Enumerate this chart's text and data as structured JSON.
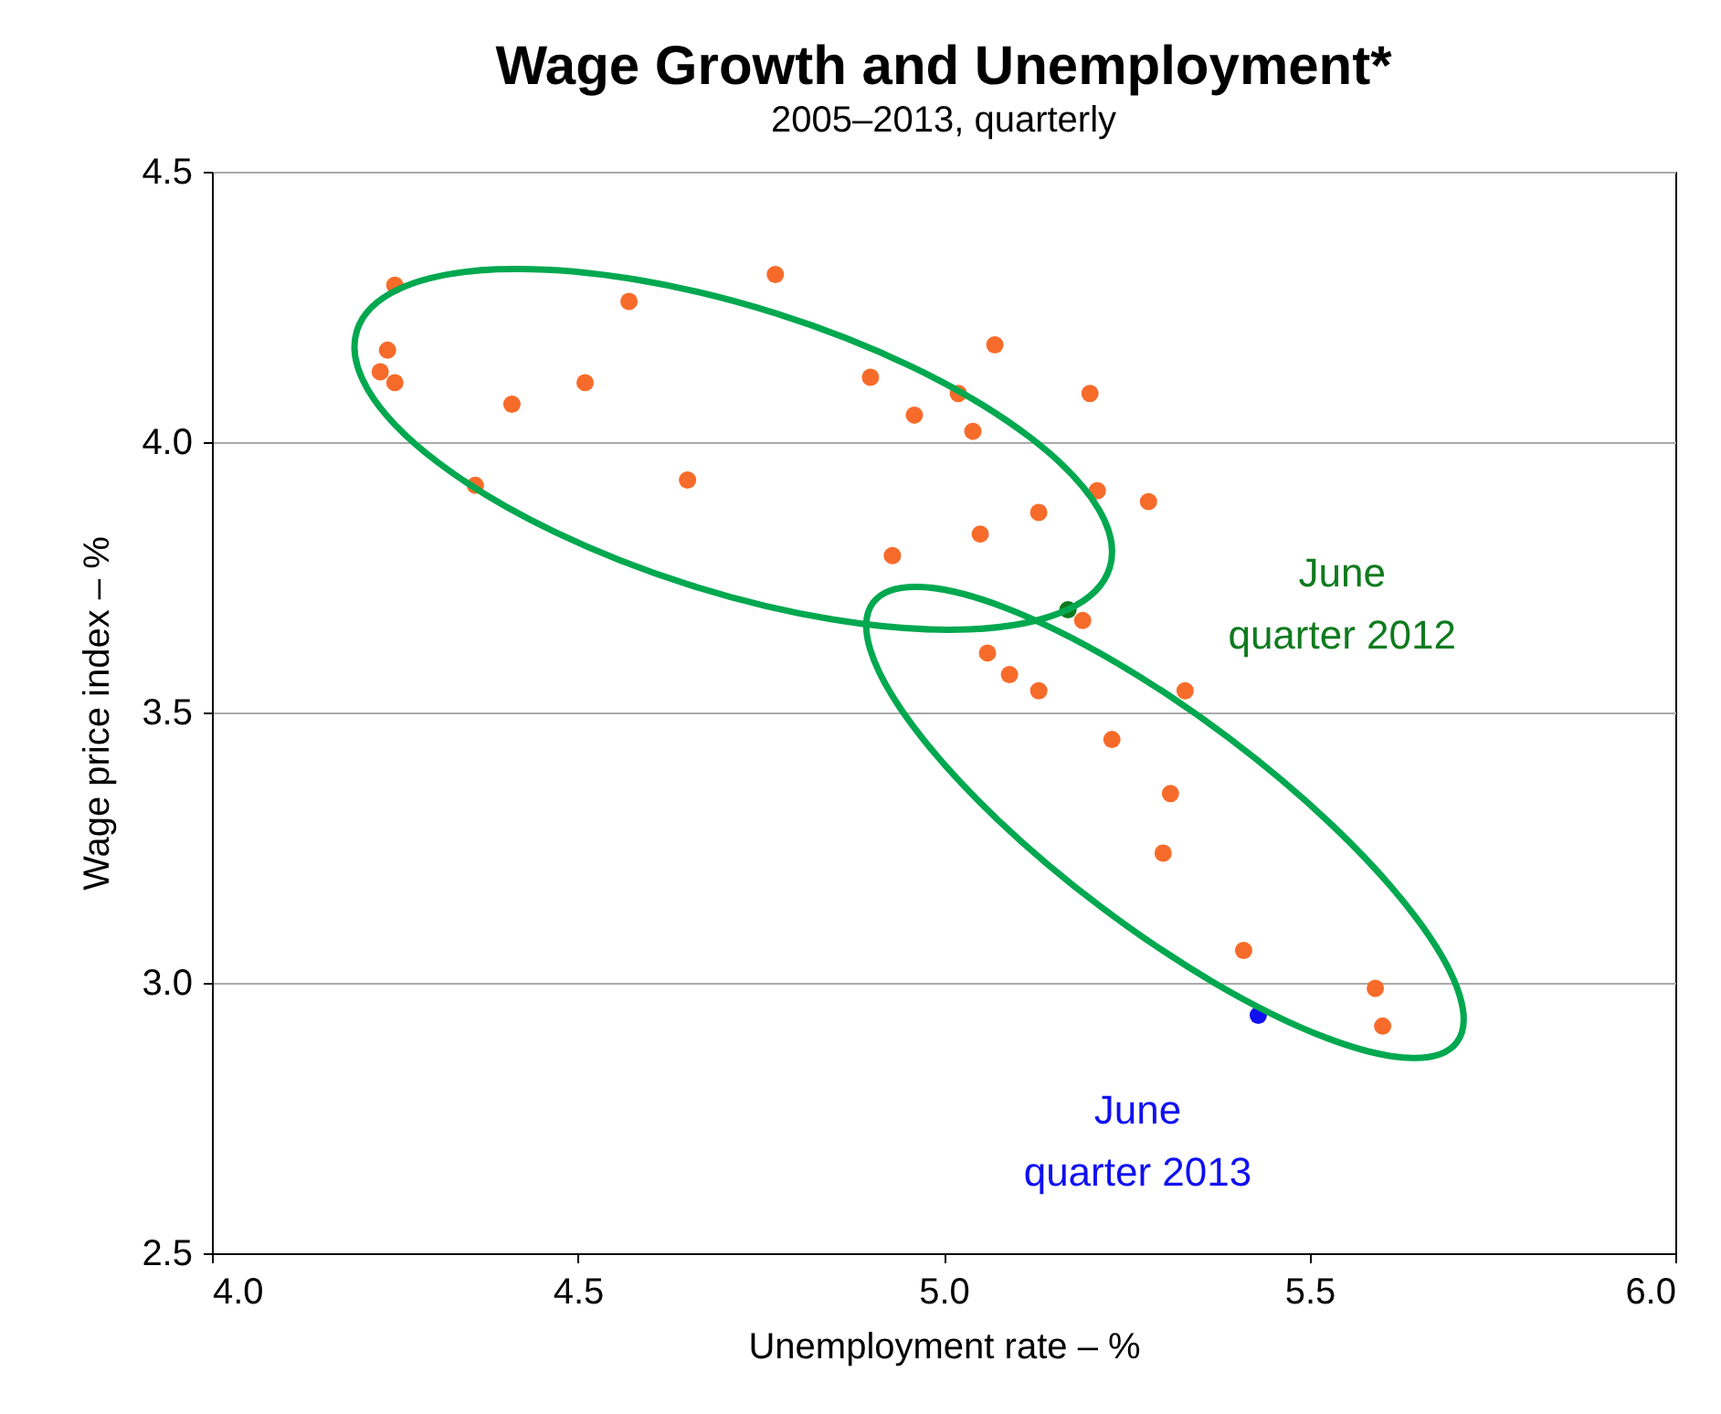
{
  "chart_data": {
    "type": "scatter",
    "title": "Wage Growth and Unemployment*",
    "subtitle": "2005–2013, quarterly",
    "xlabel": "Unemployment rate – %",
    "ylabel": "Wage price index – %",
    "series": [
      {
        "color": "#f76b2a",
        "x": [
          4.25,
          4.24,
          4.23,
          4.25,
          4.41,
          4.36,
          4.51,
          4.57,
          4.65,
          4.77,
          4.9,
          4.96,
          5.02,
          5.04,
          5.07,
          4.93,
          5.05,
          5.13,
          5.2,
          5.21,
          5.28,
          5.19,
          5.06,
          5.09,
          5.13,
          5.33,
          5.23,
          5.31,
          5.3,
          5.41,
          5.59,
          5.6
        ],
        "values": [
          4.29,
          4.17,
          4.13,
          4.11,
          4.07,
          3.92,
          4.11,
          4.26,
          3.93,
          4.31,
          4.12,
          4.05,
          4.09,
          4.02,
          4.18,
          3.79,
          3.83,
          3.87,
          4.09,
          3.91,
          3.89,
          3.67,
          3.61,
          3.57,
          3.54,
          3.54,
          3.45,
          3.35,
          3.24,
          3.06,
          2.99,
          2.92
        ]
      },
      {
        "color": "#0f7a1e",
        "x": [
          5.17
        ],
        "values": [
          3.69
        ]
      },
      {
        "color": "#1010f0",
        "x": [
          5.43
        ],
        "values": [
          2.94
        ]
      }
    ],
    "annotations": [
      "June\nquarter 2012",
      "June\nquarter 2013"
    ],
    "xlim": [
      4.0,
      6.0
    ],
    "xticks": [
      {
        "value": 4,
        "label": "4.0"
      },
      {
        "value": 4.5,
        "label": "4.5"
      },
      {
        "value": 5,
        "label": "5.0"
      },
      {
        "value": 5.5,
        "label": "5.5"
      },
      {
        "value": 6,
        "label": "6.0"
      }
    ],
    "ylim": [
      2.5,
      4.5
    ],
    "yticks": [
      {
        "value": 2.5,
        "label": "2.5"
      },
      {
        "value": 3,
        "label": "3.0"
      },
      {
        "value": 3.5,
        "label": "3.5"
      },
      {
        "value": 4,
        "label": "4.0"
      },
      {
        "value": 4.5,
        "label": "4.5"
      }
    ],
    "grid": "y",
    "marker": "circle"
  }
}
